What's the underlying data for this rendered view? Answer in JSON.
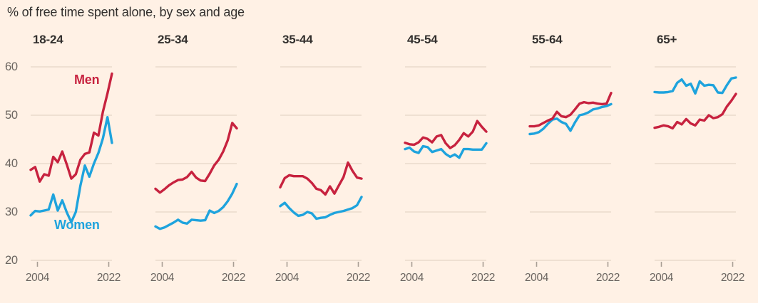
{
  "title": "% of free time spent alone, by sex and age",
  "legend": {
    "men": "Men",
    "women": "Women"
  },
  "colors": {
    "men": "#c7223f",
    "women": "#1ea3dd",
    "background": "#fff1e5",
    "grid": "#e5d6c7",
    "title_text": "#33302e",
    "header_text": "#33302e",
    "axis_text": "#6b6560",
    "tick": "#a89e94"
  },
  "axis": {
    "y_ticks": [
      60,
      50,
      40,
      30,
      20
    ],
    "y_min": 20,
    "y_max": 60,
    "x_tick_labels": [
      "2004",
      "2022"
    ]
  },
  "chart_data": {
    "type": "line",
    "x": [
      2004,
      2005,
      2006,
      2007,
      2008,
      2009,
      2010,
      2011,
      2012,
      2013,
      2014,
      2015,
      2016,
      2017,
      2018,
      2019,
      2020,
      2021,
      2022
    ],
    "panels": [
      {
        "age_group": "18-24",
        "series": [
          {
            "name": "Men",
            "values": [
              38.7,
              39.3,
              36.3,
              37.8,
              37.5,
              41.4,
              40.3,
              42.5,
              39.8,
              36.9,
              37.8,
              40.8,
              42.0,
              42.3,
              46.4,
              45.8,
              50.7,
              54.5,
              58.6
            ]
          },
          {
            "name": "Women",
            "values": [
              29.3,
              30.2,
              30.1,
              30.3,
              30.5,
              33.6,
              30.3,
              32.4,
              29.9,
              27.9,
              30.0,
              35.4,
              39.6,
              37.3,
              40.0,
              42.2,
              45.2,
              49.6,
              44.3
            ]
          }
        ]
      },
      {
        "age_group": "25-34",
        "series": [
          {
            "name": "Men",
            "values": [
              34.8,
              34.0,
              34.7,
              35.5,
              36.1,
              36.6,
              36.7,
              37.2,
              38.3,
              37.1,
              36.5,
              36.4,
              37.9,
              39.6,
              40.8,
              42.5,
              44.8,
              48.4,
              47.3
            ]
          },
          {
            "name": "Women",
            "values": [
              27.0,
              26.5,
              26.8,
              27.3,
              27.8,
              28.4,
              27.8,
              27.6,
              28.4,
              28.3,
              28.2,
              28.3,
              30.3,
              29.8,
              30.2,
              31.0,
              32.2,
              33.8,
              35.8
            ]
          }
        ]
      },
      {
        "age_group": "35-44",
        "series": [
          {
            "name": "Men",
            "values": [
              35.1,
              37.0,
              37.6,
              37.4,
              37.4,
              37.4,
              36.9,
              36.0,
              34.8,
              34.5,
              33.6,
              35.3,
              33.8,
              35.5,
              37.2,
              40.2,
              38.5,
              37.1,
              36.9
            ]
          },
          {
            "name": "Women",
            "values": [
              31.2,
              31.9,
              30.8,
              29.9,
              29.2,
              29.4,
              30.0,
              29.7,
              28.6,
              28.8,
              28.9,
              29.4,
              29.8,
              30.0,
              30.2,
              30.5,
              30.8,
              31.4,
              33.1
            ]
          }
        ]
      },
      {
        "age_group": "45-54",
        "series": [
          {
            "name": "Men",
            "values": [
              44.3,
              44.0,
              43.9,
              44.4,
              45.4,
              45.1,
              44.4,
              45.6,
              45.9,
              44.2,
              43.2,
              43.8,
              44.9,
              46.3,
              45.6,
              46.6,
              48.8,
              47.6,
              46.6
            ]
          },
          {
            "name": "Women",
            "values": [
              43.0,
              43.3,
              42.5,
              42.2,
              43.6,
              43.4,
              42.4,
              42.7,
              43.0,
              42.0,
              41.4,
              41.9,
              41.2,
              43.0,
              43.0,
              42.9,
              42.9,
              42.9,
              44.2
            ]
          }
        ]
      },
      {
        "age_group": "55-64",
        "series": [
          {
            "name": "Men",
            "values": [
              47.7,
              47.7,
              47.9,
              48.4,
              48.9,
              49.3,
              50.7,
              49.8,
              49.6,
              50.1,
              51.2,
              52.4,
              52.7,
              52.5,
              52.6,
              52.4,
              52.3,
              52.4,
              54.6
            ]
          },
          {
            "name": "Women",
            "values": [
              46.1,
              46.2,
              46.5,
              47.2,
              48.2,
              49.1,
              49.3,
              48.6,
              48.2,
              46.8,
              48.5,
              50.0,
              50.2,
              50.6,
              51.2,
              51.4,
              51.7,
              51.9,
              52.3
            ]
          }
        ]
      },
      {
        "age_group": "65+",
        "series": [
          {
            "name": "Men",
            "values": [
              47.4,
              47.6,
              47.9,
              47.7,
              47.3,
              48.6,
              48.1,
              49.2,
              48.3,
              47.9,
              49.1,
              48.9,
              50.0,
              49.4,
              49.6,
              50.2,
              51.8,
              53.0,
              54.4
            ]
          },
          {
            "name": "Women",
            "values": [
              54.8,
              54.7,
              54.7,
              54.8,
              55.0,
              56.7,
              57.4,
              56.1,
              56.5,
              54.5,
              57.0,
              56.1,
              56.3,
              56.2,
              54.7,
              54.6,
              56.2,
              57.6,
              57.8
            ]
          }
        ]
      }
    ]
  }
}
